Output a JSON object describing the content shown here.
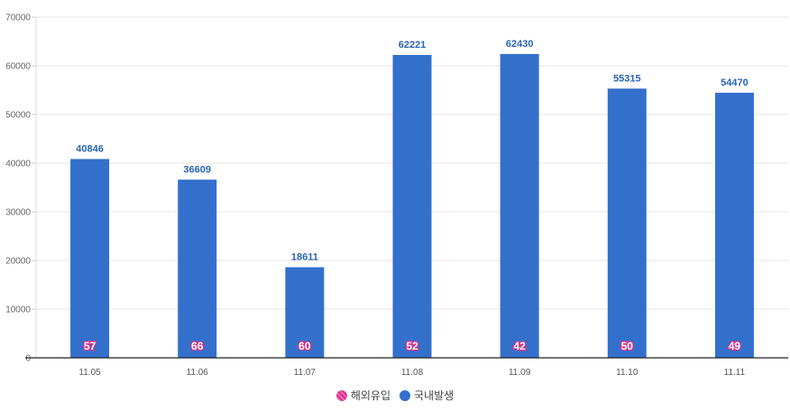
{
  "chart_data": {
    "type": "bar",
    "categories": [
      "11.05",
      "11.06",
      "11.07",
      "11.08",
      "11.09",
      "11.10",
      "11.11"
    ],
    "series": [
      {
        "name": "해외유입",
        "values": [
          57,
          66,
          60,
          52,
          42,
          50,
          49
        ],
        "color": "#d6338a"
      },
      {
        "name": "국내발생",
        "values": [
          40846,
          36609,
          18611,
          62221,
          62430,
          55315,
          54470
        ],
        "color": "#3370cc"
      }
    ],
    "yticks": [
      0,
      10000,
      20000,
      30000,
      40000,
      50000,
      60000,
      70000
    ],
    "ylim": [
      0,
      70000
    ],
    "grid": true,
    "legend_position": "bottom-center",
    "data_label_color": "#2a63b8",
    "inner_label_outline": "#d6338a"
  }
}
